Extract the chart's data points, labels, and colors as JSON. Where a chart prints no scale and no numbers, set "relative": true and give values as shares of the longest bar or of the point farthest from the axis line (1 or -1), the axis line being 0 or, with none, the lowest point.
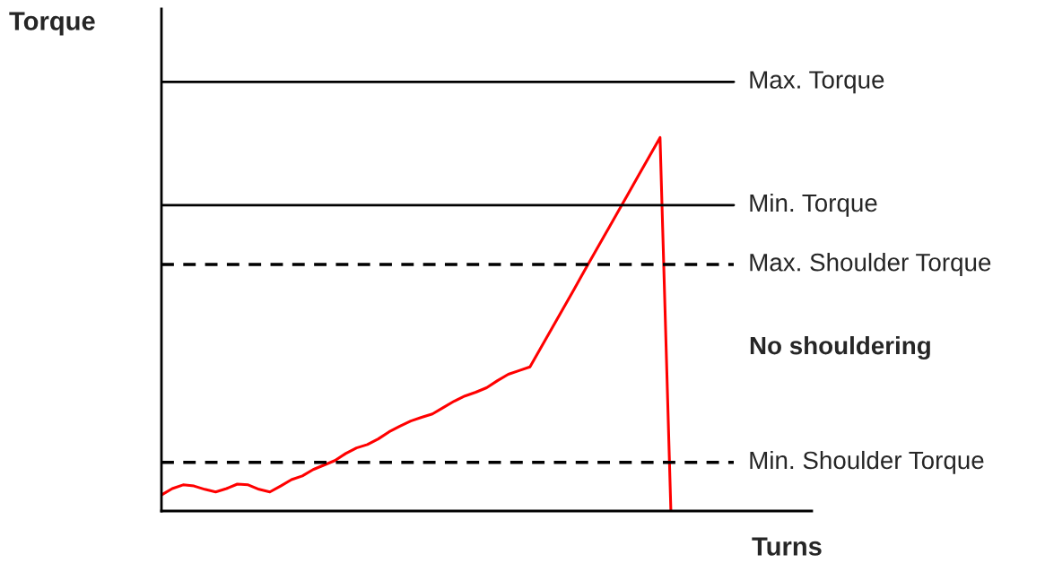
{
  "chart_data": {
    "type": "line",
    "relative": true,
    "ylabel": "Torque",
    "xlabel": "Turns",
    "legend": false,
    "marker": "none",
    "line_style": "solid",
    "tick_labels": false,
    "categories": [
      null,
      null,
      null,
      null,
      null,
      null,
      null,
      null,
      null,
      null,
      null,
      null,
      null,
      null,
      null,
      null,
      null,
      null,
      null,
      null,
      null,
      null,
      null,
      null,
      null,
      null,
      null,
      null,
      null,
      null,
      null,
      null,
      null,
      null,
      null,
      null,
      null,
      null,
      null,
      null,
      null,
      null,
      null,
      null,
      null,
      null,
      null,
      null,
      null,
      null,
      null,
      null,
      null,
      null,
      null,
      null,
      null,
      null,
      null,
      null,
      null
    ],
    "series": [
      {
        "color": "#ff0000",
        "values": [
          0.043,
          0.06,
          0.07,
          0.067,
          0.058,
          0.051,
          0.06,
          0.072,
          0.07,
          0.058,
          0.051,
          0.067,
          0.084,
          0.094,
          0.111,
          0.123,
          0.135,
          0.154,
          0.169,
          0.178,
          0.193,
          0.212,
          0.227,
          0.241,
          0.251,
          0.26,
          0.277,
          0.294,
          0.308,
          0.318,
          0.33,
          0.349,
          0.366,
          0.376,
          0.386,
          0.437,
          0.488,
          0.539,
          0.59,
          0.642,
          0.693,
          0.744,
          0.795,
          0.846,
          0.898,
          0.949,
          1.0,
          0,
          null,
          null,
          null,
          null,
          null,
          null,
          null,
          null,
          null,
          null,
          null,
          null,
          null
        ]
      }
    ],
    "ref_lines": [
      {
        "axis": "y",
        "value": 1.149,
        "label": "Max. Torque",
        "color": "#000000",
        "line_style": "solid"
      },
      {
        "axis": "y",
        "value": 0.819,
        "label": "Min. Torque",
        "color": "#000000",
        "line_style": "solid"
      },
      {
        "axis": "y",
        "value": 0.66,
        "label": "Max. Shoulder Torque",
        "color": "#000000",
        "line_style": "dashed"
      },
      {
        "axis": "y",
        "value": 0.13,
        "label": "Min. Shoulder Torque",
        "color": "#000000",
        "line_style": "dashed"
      }
    ],
    "annotations": [
      "No shouldering"
    ]
  }
}
